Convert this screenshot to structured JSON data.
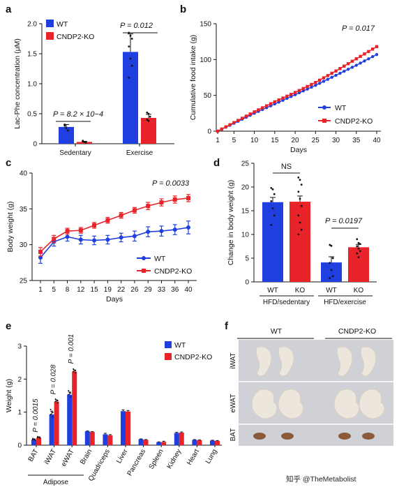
{
  "colors": {
    "wt": "#1f3fe0",
    "ko": "#e8242a",
    "ink": "#111111",
    "photo": "#cfd1d6"
  },
  "watermark": "知乎 @TheMetabolist",
  "panels": {
    "a": {
      "letter": "a"
    },
    "b": {
      "letter": "b"
    },
    "c": {
      "letter": "c"
    },
    "d": {
      "letter": "d"
    },
    "e": {
      "letter": "e"
    },
    "f": {
      "letter": "f",
      "col_labels": [
        "WT",
        "CNDP2-KO"
      ],
      "row_labels": [
        "iWAT",
        "eWAT",
        "BAT"
      ]
    }
  },
  "chart_data": [
    {
      "id": "a",
      "type": "bar",
      "title": "",
      "ylabel": "Lac-Phe concentration (μM)",
      "ylim": [
        0,
        2.0
      ],
      "yticks": [
        "0",
        "0.5",
        "1.0",
        "1.5",
        "2.0"
      ],
      "categories": [
        "Sedentary",
        "Exercise"
      ],
      "legend": [
        "WT",
        "CNDP2-KO"
      ],
      "legend_position": "top-left",
      "series": [
        {
          "name": "WT",
          "values": [
            0.28,
            1.53
          ],
          "errors": [
            0.04,
            0.3
          ]
        },
        {
          "name": "CNDP2-KO",
          "values": [
            0.03,
            0.43
          ],
          "errors": [
            0.01,
            0.06
          ]
        }
      ],
      "annotations": [
        "P = 8.2 × 10−4",
        "P = 0.012"
      ]
    },
    {
      "id": "b",
      "type": "line",
      "title": "",
      "xlabel": "Days",
      "ylabel": "Cumulative food intake (g)",
      "xlim": [
        1,
        40
      ],
      "ylim": [
        0,
        150
      ],
      "xticks": [
        "1",
        "5",
        "10",
        "15",
        "20",
        "25",
        "30",
        "35",
        "40"
      ],
      "yticks": [
        "0",
        "50",
        "100",
        "150"
      ],
      "legend": [
        "WT",
        "CNDP2-KO"
      ],
      "legend_position": "bottom-right",
      "annotation": "P = 0.017",
      "series": [
        {
          "name": "WT",
          "x": [
            1,
            5,
            10,
            15,
            20,
            25,
            30,
            35,
            40
          ],
          "y": [
            0,
            11,
            25,
            38,
            51,
            64,
            78,
            92,
            107
          ]
        },
        {
          "name": "CNDP2-KO",
          "x": [
            1,
            5,
            10,
            15,
            20,
            25,
            30,
            35,
            40
          ],
          "y": [
            0,
            12,
            27,
            41,
            54,
            68,
            84,
            101,
            118
          ]
        }
      ]
    },
    {
      "id": "c",
      "type": "line",
      "title": "",
      "xlabel": "Days",
      "ylabel": "Body weight (g)",
      "ylim": [
        25,
        40
      ],
      "yticks": [
        "25",
        "30",
        "35",
        "40"
      ],
      "categories": [
        "1",
        "5",
        "8",
        "12",
        "15",
        "19",
        "22",
        "26",
        "29",
        "33",
        "36",
        "40"
      ],
      "legend": [
        "WT",
        "CNDP2-KO"
      ],
      "legend_position": "bottom-right",
      "annotation": "P = 0.0033",
      "series": [
        {
          "name": "WT",
          "values": [
            28.2,
            30.4,
            31.1,
            30.7,
            30.6,
            30.7,
            31.0,
            31.2,
            31.8,
            31.9,
            32.1,
            32.4
          ],
          "errors": [
            0.8,
            0.6,
            0.6,
            0.6,
            0.6,
            0.6,
            0.6,
            0.7,
            0.7,
            0.7,
            0.7,
            0.9
          ]
        },
        {
          "name": "CNDP2-KO",
          "values": [
            29.0,
            30.8,
            31.9,
            32.0,
            32.7,
            33.4,
            34.1,
            34.8,
            35.4,
            35.9,
            36.3,
            36.5
          ],
          "errors": [
            0.6,
            0.5,
            0.4,
            0.4,
            0.4,
            0.4,
            0.4,
            0.4,
            0.5,
            0.5,
            0.5,
            0.5
          ]
        }
      ]
    },
    {
      "id": "d",
      "type": "bar",
      "title": "",
      "ylabel": "Change in body weight (g)",
      "ylim": [
        0,
        25
      ],
      "yticks": [
        "0",
        "5",
        "10",
        "15",
        "20",
        "25"
      ],
      "groups": [
        "HFD/sedentary",
        "HFD/exercise"
      ],
      "bar_labels": [
        "WT",
        "KO",
        "WT",
        "KO"
      ],
      "series": [
        {
          "name": "WT",
          "values": [
            16.8,
            4.1
          ],
          "errors": [
            1.0,
            1.2
          ]
        },
        {
          "name": "KO",
          "values": [
            16.9,
            7.3
          ],
          "errors": [
            1.2,
            0.6
          ]
        }
      ],
      "annotations": [
        "NS",
        "P = 0.0197"
      ]
    },
    {
      "id": "e",
      "type": "bar",
      "title": "",
      "ylabel": "Weight (g)",
      "ylim": [
        0,
        3
      ],
      "yticks": [
        "0",
        "1",
        "2",
        "3"
      ],
      "categories": [
        "BAT",
        "iWAT",
        "eWAT",
        "Brain",
        "Quadriceps",
        "Liver",
        "Pancreas",
        "Spleen",
        "Kidney",
        "Heart",
        "Lung"
      ],
      "group_label": "Adipose",
      "legend": [
        "WT",
        "CNDP2-KO"
      ],
      "legend_position": "top-right",
      "series": [
        {
          "name": "WT",
          "values": [
            0.17,
            0.93,
            1.53,
            0.42,
            0.33,
            1.03,
            0.18,
            0.09,
            0.37,
            0.16,
            0.14
          ],
          "errors": [
            0.02,
            0.1,
            0.08,
            0.01,
            0.03,
            0.04,
            0.01,
            0.01,
            0.02,
            0.01,
            0.01
          ]
        },
        {
          "name": "CNDP2-KO",
          "values": [
            0.23,
            1.32,
            2.23,
            0.4,
            0.3,
            1.02,
            0.16,
            0.1,
            0.38,
            0.15,
            0.13
          ],
          "errors": [
            0.02,
            0.05,
            0.05,
            0.01,
            0.02,
            0.03,
            0.01,
            0.02,
            0.02,
            0.01,
            0.01
          ]
        }
      ],
      "pvalues": [
        "P = 0.0015",
        "P = 0.028",
        "P = 0.001"
      ]
    }
  ]
}
